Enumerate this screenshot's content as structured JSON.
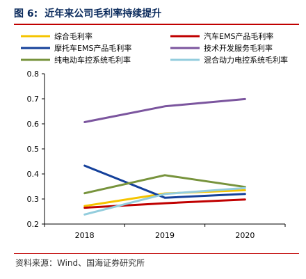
{
  "header": {
    "figure_label": "图 6:",
    "title": "近年来公司毛利率持续提升"
  },
  "source": "资料来源：Wind、国海证券研究所",
  "chart_data": {
    "type": "line",
    "x": [
      "2018",
      "2019",
      "2020"
    ],
    "ylim": [
      0.2,
      0.8
    ],
    "yticks": [
      "0.2",
      "0.3",
      "0.4",
      "0.5",
      "0.6",
      "0.7",
      "0.8"
    ],
    "grid": false,
    "legend_placement": "top",
    "series": [
      {
        "name": "综合毛利率",
        "color": "#f5c400",
        "values": [
          0.272,
          0.322,
          0.335
        ]
      },
      {
        "name": "汽车EMS产品毛利率",
        "color": "#c00000",
        "values": [
          0.265,
          0.283,
          0.298
        ]
      },
      {
        "name": "摩托车EMS产品毛利率",
        "color": "#14409a",
        "values": [
          0.433,
          0.305,
          0.32
        ]
      },
      {
        "name": "技术开发服务毛利率",
        "color": "#7b559e",
        "values": [
          0.607,
          0.67,
          0.699
        ]
      },
      {
        "name": "纯电动车控系统毛利率",
        "color": "#77933c",
        "values": [
          0.323,
          0.395,
          0.348
        ]
      },
      {
        "name": "混合动力电控系统毛利率",
        "color": "#93cddd",
        "values": [
          0.238,
          0.32,
          0.344
        ]
      }
    ]
  }
}
